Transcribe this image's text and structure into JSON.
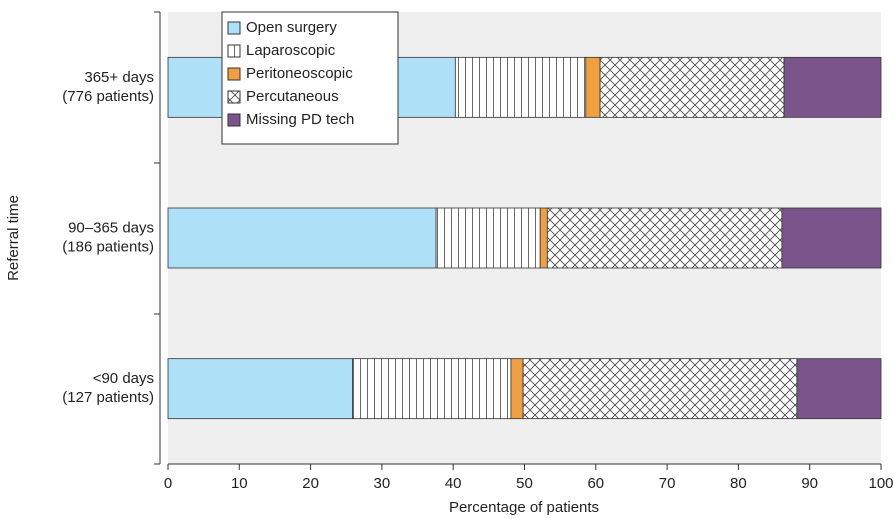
{
  "chart_data": {
    "type": "stacked-barh",
    "xlabel": "Percentage of patients",
    "ylabel": "Referral time",
    "categories": [
      [
        "365+ days",
        "(776 patients)"
      ],
      [
        "90–365 days",
        "(186 patients)"
      ],
      [
        "<90 days",
        "(127 patients)"
      ]
    ],
    "series": [
      {
        "name": "Open surgery",
        "color": "#aee1f7",
        "pattern": "none",
        "values": [
          40.3,
          37.6,
          25.9
        ]
      },
      {
        "name": "Laparoscopic",
        "color": "#ffffff",
        "pattern": "vertical",
        "values": [
          18.3,
          14.6,
          22.2
        ]
      },
      {
        "name": "Peritoneoscopic",
        "color": "#f0a040",
        "pattern": "none",
        "values": [
          2.0,
          1.0,
          1.7
        ]
      },
      {
        "name": "Percutaneous",
        "color": "#ffffff",
        "pattern": "crosshatch",
        "values": [
          25.8,
          32.9,
          38.4
        ]
      },
      {
        "name": "Missing PD tech",
        "color": "#7b548c",
        "pattern": "none",
        "values": [
          13.6,
          13.9,
          11.8
        ]
      }
    ],
    "xlim": [
      0,
      100
    ],
    "xticks": [
      0,
      10,
      20,
      30,
      40,
      50,
      60,
      70,
      80,
      90,
      100
    ],
    "legend": "upper left"
  }
}
